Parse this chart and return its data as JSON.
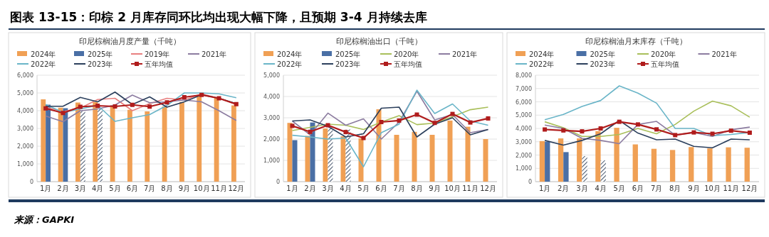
{
  "chart_data": [
    {
      "type": "other",
      "title": "图表 13-15：印棕 2 月库存同环比均出现大幅下降，且预期 3-4 月持续去库",
      "annotations": [
        "来源：GAPKI"
      ]
    },
    {
      "type": "bar",
      "title": "印尼棕榈油月度产量（千吨）",
      "categories": [
        "1月",
        "2月",
        "3月",
        "4月",
        "5月",
        "6月",
        "7月",
        "8月",
        "9月",
        "10月",
        "11月",
        "12月"
      ],
      "ylim": [
        0,
        6000
      ],
      "yticks": [
        {
          "value": 0,
          "label": "0"
        },
        {
          "value": 1000,
          "label": "1,000"
        },
        {
          "value": 2000,
          "label": "2,000"
        },
        {
          "value": 3000,
          "label": "3,000"
        },
        {
          "value": 4000,
          "label": "4,000"
        },
        {
          "value": 5000,
          "label": "5,000"
        },
        {
          "value": 6000,
          "label": "6,000"
        }
      ],
      "grid": "y",
      "legend": "top",
      "marker": "none",
      "series": [
        {
          "type": "bar",
          "name": "2024年",
          "color": "#f0a055",
          "values": [
            4640,
            4170,
            4460,
            4490,
            4300,
            4050,
            3960,
            4240,
            4490,
            4870,
            4740,
            4300
          ]
        },
        {
          "type": "bar",
          "name": "2025年",
          "color": "#4a6fa5",
          "values": [
            4340,
            4140,
            null,
            null,
            null,
            null,
            null,
            null,
            null,
            null,
            null,
            null
          ]
        },
        {
          "type": "bar",
          "color": "#44546a",
          "values": [
            null,
            null,
            3980,
            4110,
            null,
            null,
            null,
            null,
            null,
            null,
            null,
            null
          ]
        },
        {
          "type": "line",
          "name": "2019年",
          "color": "#e88080",
          "values": [
            4200,
            3950,
            4150,
            4630,
            4700,
            4000,
            4400,
            4700,
            4600,
            4950,
            4700,
            4350
          ]
        },
        {
          "type": "line",
          "name": "2021年",
          "color": "#8c7ca0",
          "values": [
            3700,
            3380,
            4000,
            4100,
            4320,
            4880,
            4450,
            4500,
            4600,
            4500,
            4000,
            3450
          ]
        },
        {
          "type": "line",
          "name": "2022年",
          "color": "#6ab5c8",
          "values": [
            4350,
            3900,
            4100,
            4300,
            3400,
            3600,
            3780,
            4300,
            5000,
            5000,
            4950,
            4730
          ]
        },
        {
          "type": "line",
          "name": "2023年",
          "color": "#2b3f5c",
          "values": [
            4250,
            4250,
            4750,
            4500,
            5050,
            4350,
            4780,
            4200,
            4500,
            4900,
            4700,
            4400
          ]
        },
        {
          "type": "line",
          "name": "五年均值",
          "color": "#b01c1c",
          "marker": "square",
          "values": [
            4130,
            3870,
            4220,
            4280,
            4240,
            4330,
            4230,
            4470,
            4760,
            4890,
            4700,
            4370
          ]
        }
      ]
    },
    {
      "type": "bar",
      "title": "印尼棕榈油出口（千吨）",
      "categories": [
        "1月",
        "2月",
        "3月",
        "4月",
        "5月",
        "6月",
        "7月",
        "8月",
        "9月",
        "10月",
        "11月",
        "12月"
      ],
      "ylim": [
        0,
        5000
      ],
      "yticks": [
        {
          "value": 0,
          "label": "0"
        },
        {
          "value": 1000,
          "label": "1,000"
        },
        {
          "value": 2000,
          "label": "2,000"
        },
        {
          "value": 3000,
          "label": "3,000"
        },
        {
          "value": 4000,
          "label": "4,000"
        },
        {
          "value": 5000,
          "label": "5,000"
        }
      ],
      "grid": "y",
      "legend": "top",
      "marker": "none",
      "series": [
        {
          "type": "bar",
          "name": "2024年",
          "color": "#f0a055",
          "values": [
            2760,
            2150,
            2500,
            2130,
            2030,
            3400,
            2200,
            2340,
            2200,
            2870,
            2580,
            2000
          ]
        },
        {
          "type": "bar",
          "name": "2025年",
          "color": "#4a6fa5",
          "values": [
            1950,
            2780,
            null,
            null,
            null,
            null,
            null,
            null,
            null,
            null,
            null,
            null
          ]
        },
        {
          "type": "bar",
          "color": "#44546a",
          "values": [
            null,
            null,
            2550,
            2450,
            null,
            null,
            null,
            null,
            null,
            null,
            null,
            null
          ]
        },
        {
          "type": "line",
          "name": "2020年",
          "color": "#a9bf5a",
          "values": [
            2400,
            2550,
            2700,
            2650,
            2450,
            2800,
            3100,
            2680,
            2750,
            3050,
            3380,
            3500
          ]
        },
        {
          "type": "line",
          "name": "2021年",
          "color": "#8c7ca0",
          "values": [
            2850,
            2200,
            3220,
            2650,
            2950,
            2000,
            2800,
            4250,
            2900,
            3150,
            2300,
            2450
          ]
        },
        {
          "type": "line",
          "name": "2022年",
          "color": "#6ab5c8",
          "values": [
            2180,
            2100,
            2000,
            2050,
            700,
            2300,
            2700,
            4300,
            3200,
            3650,
            2850,
            2650
          ]
        },
        {
          "type": "line",
          "name": "2023年",
          "color": "#2b3f5c",
          "values": [
            2850,
            2900,
            2600,
            2100,
            2250,
            3450,
            3500,
            2100,
            2700,
            3000,
            2200,
            2450
          ]
        },
        {
          "type": "line",
          "name": "五年均值",
          "color": "#b01c1c",
          "marker": "square",
          "values": [
            2620,
            2340,
            2650,
            2330,
            2050,
            2800,
            2870,
            3150,
            2760,
            3180,
            2780,
            2970
          ]
        }
      ]
    },
    {
      "type": "bar",
      "title": "印尼棕榈油月末库存（千吨）",
      "categories": [
        "1月",
        "2月",
        "3月",
        "4月",
        "5月",
        "6月",
        "7月",
        "8月",
        "9月",
        "10月",
        "11月",
        "12月"
      ],
      "ylim": [
        0,
        8000
      ],
      "yticks": [
        {
          "value": 0,
          "label": "0"
        },
        {
          "value": 1000,
          "label": "1,000"
        },
        {
          "value": 2000,
          "label": "2,000"
        },
        {
          "value": 3000,
          "label": "3,000"
        },
        {
          "value": 4000,
          "label": "4,000"
        },
        {
          "value": 5000,
          "label": "5,000"
        },
        {
          "value": 6000,
          "label": "6,000"
        },
        {
          "value": 7000,
          "label": "7,000"
        },
        {
          "value": 8000,
          "label": "8,000"
        }
      ],
      "grid": "y",
      "legend": "top",
      "marker": "none",
      "series": [
        {
          "type": "bar",
          "name": "2024年",
          "color": "#f0a055",
          "values": [
            3050,
            3250,
            3250,
            3800,
            4050,
            2800,
            2470,
            2380,
            2600,
            2500,
            2580,
            2550
          ]
        },
        {
          "type": "bar",
          "name": "2025年",
          "color": "#4a6fa5",
          "values": [
            3000,
            2220,
            null,
            null,
            null,
            null,
            null,
            null,
            null,
            null,
            null,
            null
          ]
        },
        {
          "type": "bar",
          "color": "#44546a",
          "values": [
            null,
            null,
            1920,
            1600,
            null,
            null,
            null,
            null,
            null,
            null,
            null,
            null
          ]
        },
        {
          "type": "line",
          "name": "2020年",
          "color": "#a9bf5a",
          "values": [
            4500,
            4050,
            3400,
            3400,
            3550,
            4000,
            3600,
            4300,
            5300,
            6050,
            5700,
            4850
          ]
        },
        {
          "type": "line",
          "name": "2021年",
          "color": "#8c7ca0",
          "values": [
            4250,
            4000,
            3250,
            3100,
            2850,
            4300,
            4530,
            3500,
            3700,
            3400,
            3900,
            4100
          ]
        },
        {
          "type": "line",
          "name": "2022年",
          "color": "#6ab5c8",
          "values": [
            4650,
            5050,
            5650,
            6100,
            7200,
            6650,
            5900,
            4000,
            4000,
            3450,
            3550,
            3700
          ]
        },
        {
          "type": "line",
          "name": "2023年",
          "color": "#2b3f5c",
          "values": [
            3100,
            2750,
            3100,
            3600,
            4600,
            3650,
            3150,
            3200,
            2650,
            2550,
            3200,
            3150
          ]
        },
        {
          "type": "line",
          "name": "五年均值",
          "color": "#b01c1c",
          "marker": "square",
          "values": [
            3920,
            3850,
            3780,
            4000,
            4500,
            4300,
            3930,
            3500,
            3700,
            3600,
            3830,
            3680
          ]
        }
      ]
    }
  ]
}
